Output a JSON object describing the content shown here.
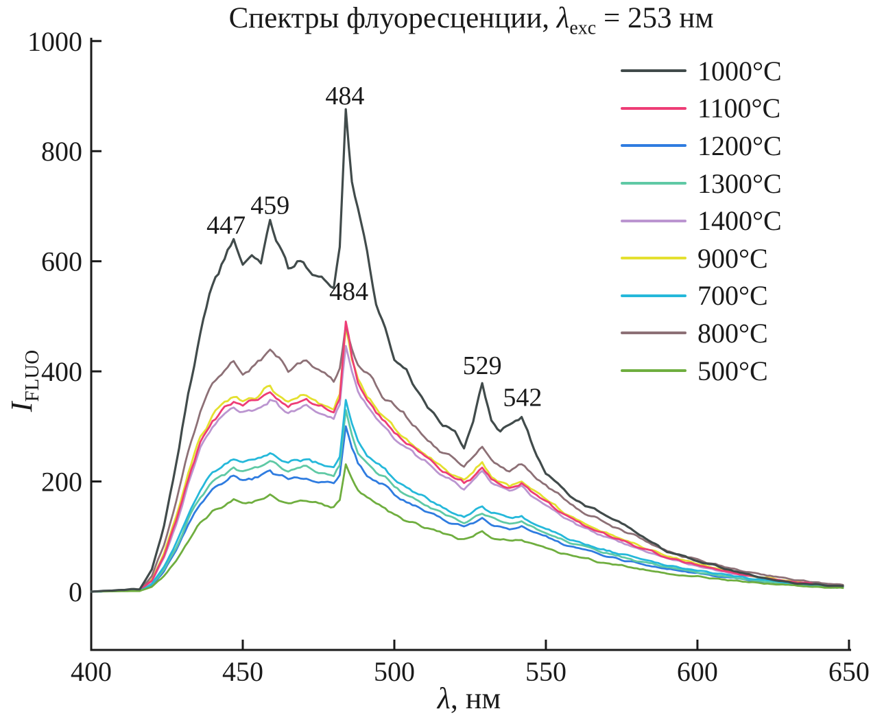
{
  "figure": {
    "title": {
      "part1": "Спектры флуоресценции, ",
      "lambda": "λ",
      "sub": "exc",
      "part2": " = 253 нм"
    }
  },
  "legend": {
    "position": "upper right",
    "items": [
      {
        "label": "1000°C",
        "color": "#414b4b"
      },
      {
        "label": "1100°C",
        "color": "#ee3d76"
      },
      {
        "label": "1200°C",
        "color": "#2f7ce0"
      },
      {
        "label": "1300°C",
        "color": "#5fc9a5"
      },
      {
        "label": "1400°C",
        "color": "#bb95d0"
      },
      {
        "label": "900°C",
        "color": "#e4e030"
      },
      {
        "label": "700°C",
        "color": "#25b8da"
      },
      {
        "label": "800°C",
        "color": "#8d7076"
      },
      {
        "label": "500°C",
        "color": "#6fae3f"
      }
    ]
  },
  "chart_data": {
    "type": "line",
    "title": "Спектры флуоресценции, λexc = 253 нм",
    "xlabel": {
      "symbol": "λ",
      "rest": ", нм"
    },
    "ylabel": {
      "symbol": "I",
      "sub": "FLUO"
    },
    "xlim": [
      400,
      650.7
    ],
    "ylim": [
      -106,
      1006
    ],
    "x_ticks": [
      400,
      450,
      500,
      550,
      600,
      650
    ],
    "y_ticks": [
      0,
      200,
      400,
      600,
      800,
      1000
    ],
    "grid": false,
    "annotations": [
      {
        "text": "447",
        "x": 444.5,
        "y": 650
      },
      {
        "text": "459",
        "x": 459,
        "y": 686
      },
      {
        "text": "484",
        "x": 483.7,
        "y": 885
      },
      {
        "text": "484",
        "x": 485,
        "y": 530
      },
      {
        "text": "529",
        "x": 529,
        "y": 395
      },
      {
        "text": "542",
        "x": 542.3,
        "y": 337
      }
    ],
    "wavelengths": [
      400,
      416,
      420,
      424,
      428,
      432,
      436,
      440,
      444,
      447,
      450,
      453,
      456,
      459,
      462,
      465,
      468,
      471,
      474,
      477,
      480,
      482,
      484,
      486,
      488,
      491,
      494,
      497,
      500,
      504,
      508,
      512,
      516,
      520,
      523,
      526,
      529,
      532,
      535,
      538,
      542,
      546,
      550,
      555,
      560,
      566,
      572,
      580,
      590,
      600,
      610,
      620,
      632,
      644,
      650
    ],
    "series": [
      {
        "name": "1000°C",
        "color": "#414b4b",
        "z": 9,
        "width": 3.2,
        "values": [
          0,
          5,
          40,
          120,
          230,
          360,
          470,
          555,
          605,
          645,
          595,
          610,
          600,
          680,
          630,
          592,
          600,
          588,
          580,
          565,
          545,
          620,
          875,
          745,
          690,
          620,
          515,
          480,
          420,
          400,
          360,
          330,
          300,
          290,
          262,
          310,
          383,
          310,
          290,
          300,
          320,
          258,
          215,
          192,
          165,
          148,
          132,
          108,
          72,
          56,
          40,
          26,
          16,
          11,
          10
        ]
      },
      {
        "name": "1100°C",
        "color": "#ee3d76",
        "z": 4,
        "width": 2.8,
        "values": [
          0,
          3,
          20,
          64,
          128,
          205,
          270,
          310,
          332,
          348,
          338,
          344,
          352,
          365,
          350,
          338,
          345,
          350,
          338,
          332,
          326,
          355,
          490,
          425,
          380,
          348,
          326,
          312,
          290,
          270,
          252,
          236,
          220,
          206,
          196,
          209,
          226,
          205,
          195,
          189,
          197,
          179,
          163,
          144,
          127,
          112,
          99,
          83,
          62,
          48,
          36,
          26,
          17,
          11,
          9
        ]
      },
      {
        "name": "1200°C",
        "color": "#2f7ce0",
        "z": 5,
        "width": 2.8,
        "values": [
          0,
          2,
          12,
          37,
          74,
          120,
          160,
          186,
          199,
          209,
          201,
          205,
          212,
          221,
          211,
          202,
          207,
          209,
          202,
          198,
          194,
          211,
          300,
          262,
          233,
          213,
          200,
          192,
          176,
          163,
          152,
          142,
          132,
          123,
          117,
          125,
          133,
          123,
          117,
          114,
          118,
          107,
          99,
          88,
          79,
          70,
          62,
          52,
          41,
          33,
          26,
          19,
          13,
          8,
          7
        ]
      },
      {
        "name": "1300°C",
        "color": "#5fc9a5",
        "z": 6,
        "width": 2.8,
        "values": [
          0,
          2,
          13,
          40,
          80,
          130,
          172,
          200,
          214,
          225,
          217,
          221,
          229,
          239,
          228,
          218,
          223,
          225,
          218,
          214,
          210,
          228,
          330,
          284,
          252,
          230,
          216,
          208,
          190,
          176,
          165,
          154,
          143,
          133,
          127,
          135,
          144,
          133,
          127,
          123,
          127,
          116,
          107,
          95,
          85,
          75,
          67,
          56,
          44,
          35,
          27,
          20,
          13,
          9,
          7
        ]
      },
      {
        "name": "1400°C",
        "color": "#bb95d0",
        "z": 1,
        "width": 2.8,
        "values": [
          0,
          3,
          19,
          60,
          120,
          195,
          258,
          296,
          318,
          335,
          325,
          330,
          338,
          350,
          336,
          325,
          332,
          336,
          325,
          319,
          313,
          338,
          448,
          400,
          362,
          334,
          314,
          301,
          278,
          259,
          242,
          228,
          212,
          198,
          188,
          201,
          217,
          197,
          188,
          182,
          189,
          172,
          157,
          138,
          122,
          108,
          95,
          80,
          60,
          46,
          35,
          25,
          16,
          11,
          8
        ]
      },
      {
        "name": "900°C",
        "color": "#e4e030",
        "z": 2,
        "width": 2.8,
        "values": [
          0,
          3,
          22,
          68,
          135,
          215,
          280,
          320,
          340,
          355,
          345,
          350,
          360,
          372,
          356,
          346,
          352,
          356,
          346,
          340,
          334,
          360,
          485,
          425,
          385,
          355,
          332,
          318,
          296,
          276,
          258,
          242,
          226,
          212,
          202,
          215,
          232,
          210,
          200,
          194,
          202,
          184,
          168,
          148,
          131,
          116,
          102,
          86,
          64,
          50,
          38,
          27,
          18,
          12,
          9
        ]
      },
      {
        "name": "700°C",
        "color": "#25b8da",
        "z": 7,
        "width": 2.8,
        "values": [
          0,
          2,
          14,
          44,
          88,
          140,
          185,
          215,
          230,
          242,
          233,
          237,
          245,
          256,
          244,
          233,
          239,
          241,
          234,
          229,
          225,
          244,
          350,
          305,
          270,
          247,
          232,
          223,
          204,
          189,
          177,
          166,
          154,
          143,
          136,
          145,
          155,
          143,
          137,
          132,
          137,
          125,
          115,
          102,
          91,
          81,
          72,
          61,
          47,
          38,
          30,
          22,
          15,
          10,
          8
        ]
      },
      {
        "name": "800°C",
        "color": "#8d7076",
        "z": 3,
        "width": 2.8,
        "values": [
          0,
          4,
          28,
          85,
          165,
          255,
          330,
          375,
          400,
          420,
          398,
          408,
          418,
          438,
          420,
          402,
          412,
          418,
          402,
          392,
          382,
          408,
          480,
          440,
          410,
          398,
          370,
          350,
          338,
          315,
          292,
          272,
          252,
          240,
          228,
          244,
          262,
          240,
          228,
          222,
          232,
          210,
          192,
          172,
          150,
          136,
          120,
          100,
          74,
          57,
          44,
          32,
          21,
          14,
          11
        ]
      },
      {
        "name": "500°C",
        "color": "#6fae3f",
        "z": 8,
        "width": 2.8,
        "values": [
          0,
          1,
          9,
          28,
          56,
          92,
          124,
          146,
          157,
          167,
          160,
          163,
          168,
          176,
          168,
          161,
          164,
          166,
          161,
          158,
          155,
          166,
          235,
          207,
          186,
          170,
          159,
          152,
          139,
          129,
          121,
          113,
          106,
          99,
          94,
          100,
          108,
          99,
          94,
          91,
          94,
          86,
          79,
          70,
          63,
          56,
          50,
          42,
          33,
          27,
          21,
          16,
          11,
          7,
          6
        ]
      }
    ]
  }
}
